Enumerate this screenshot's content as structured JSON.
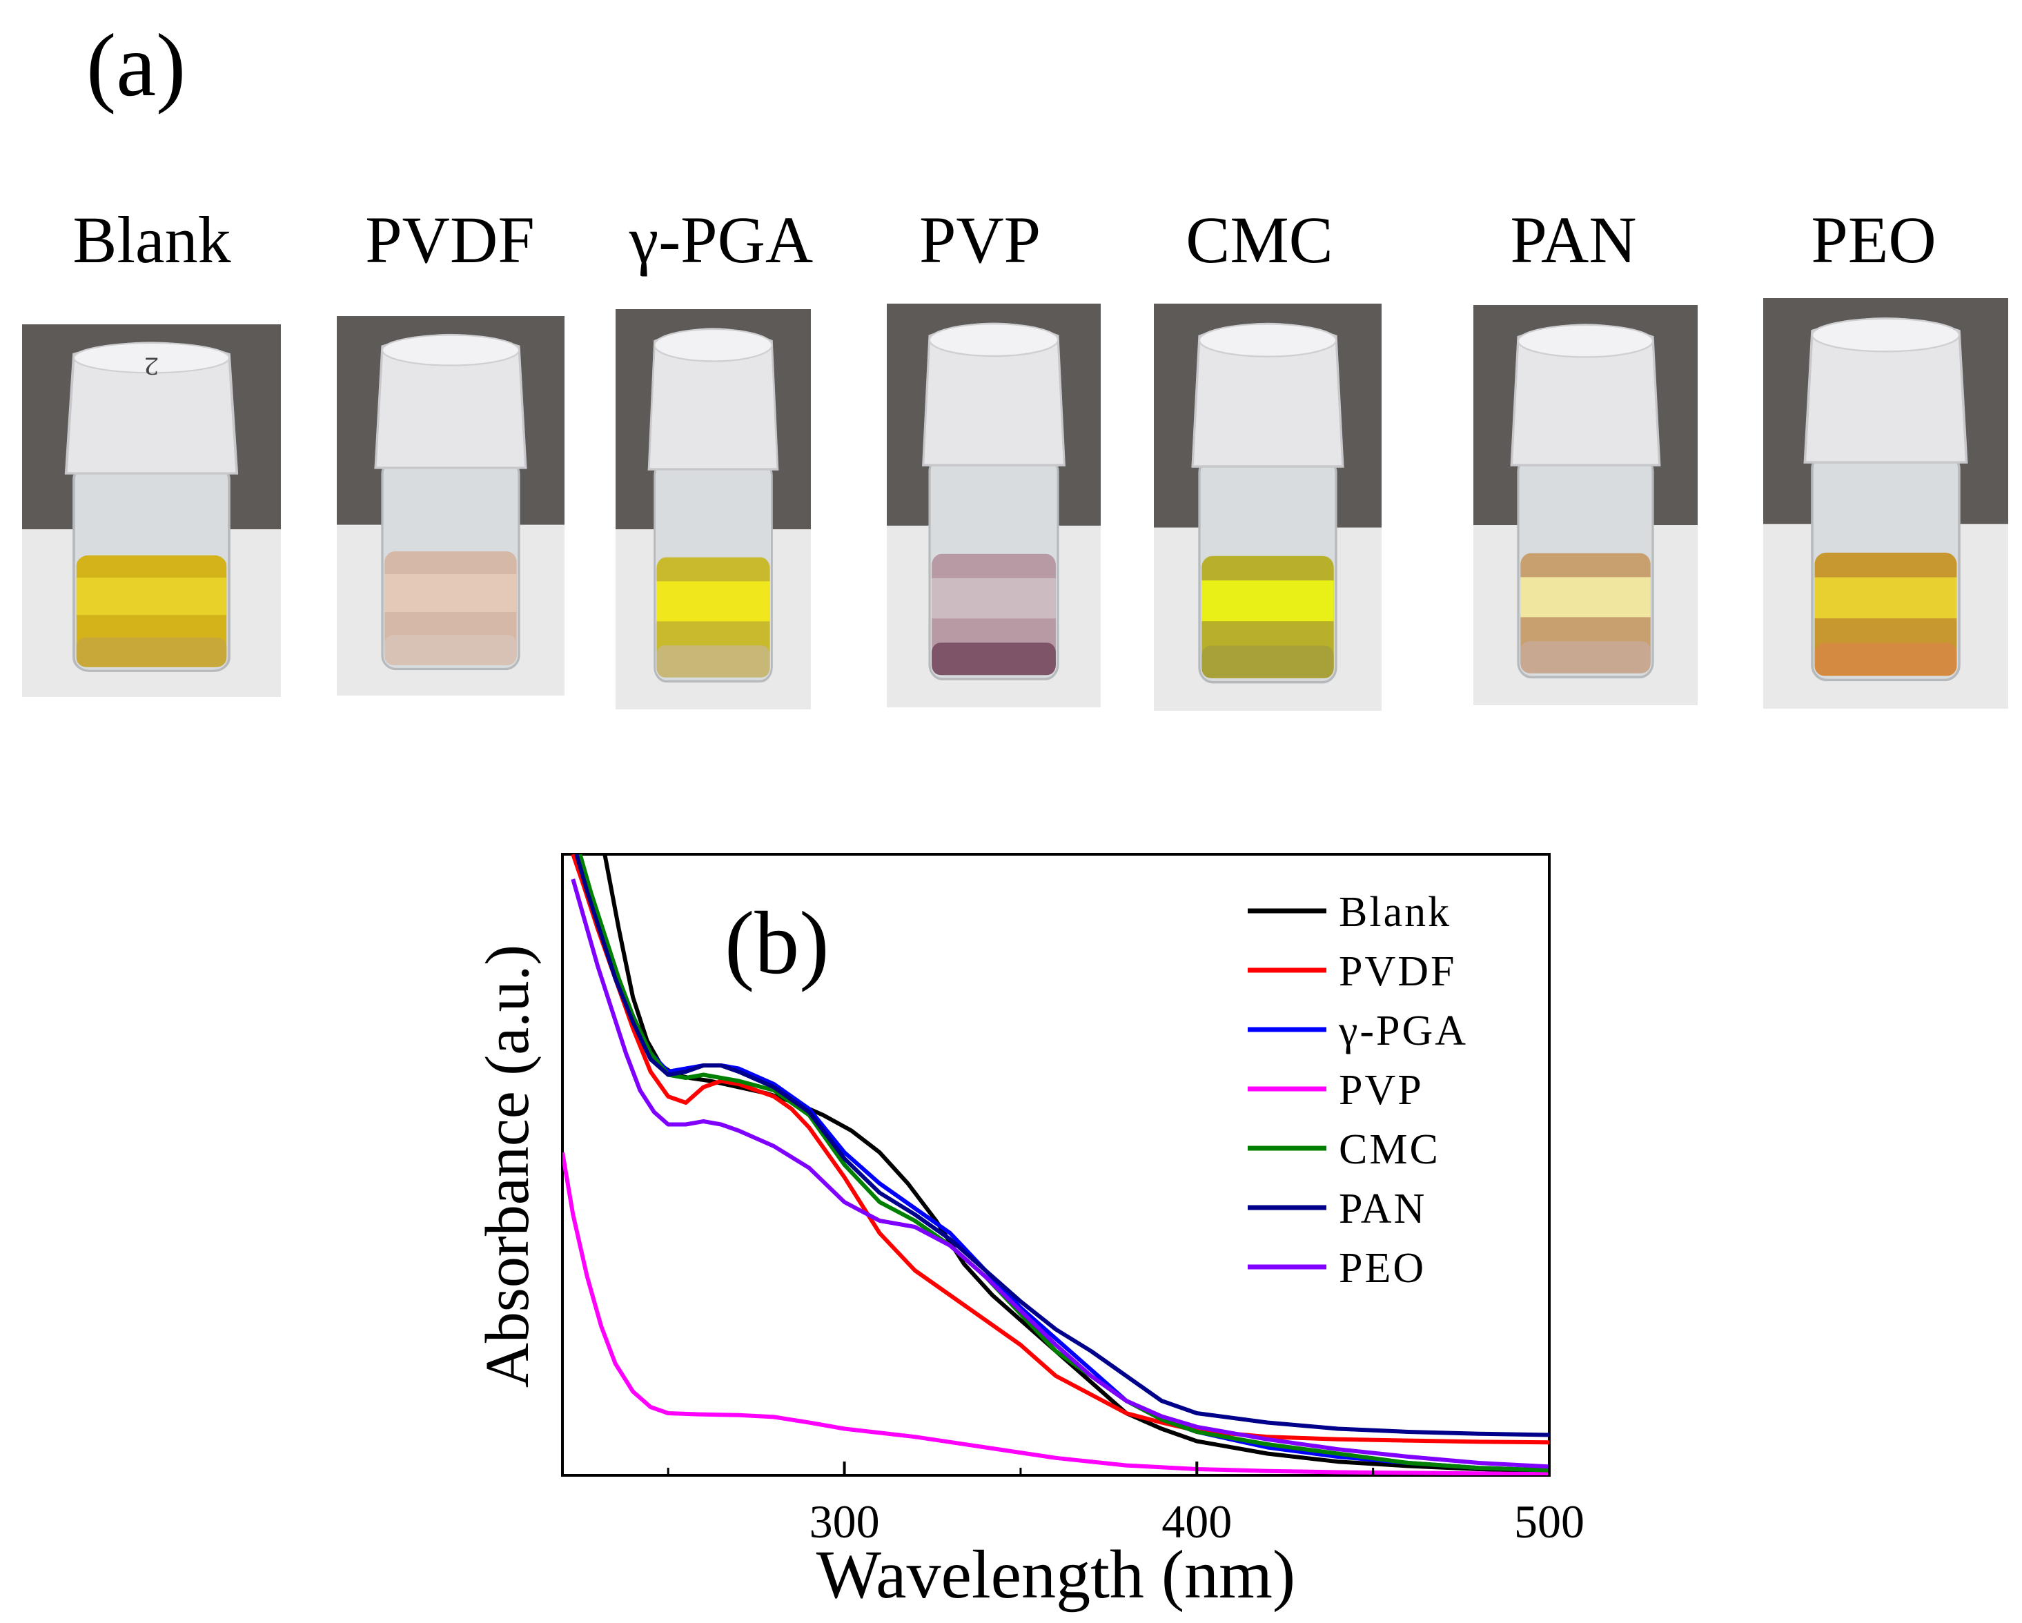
{
  "panel_a": {
    "label": "(a)",
    "vials": [
      {
        "name": "Blank",
        "cap_mark": "2",
        "liquid": "#d4b21a",
        "band": "#e8d22a",
        "sediment": "#c8a838"
      },
      {
        "name": "PVDF",
        "cap_mark": "",
        "liquid": "#d6b8a6",
        "band": "#e4c9b8",
        "sediment": "#d8c2b6"
      },
      {
        "name": "γ-PGA",
        "cap_mark": "",
        "liquid": "#c9b92c",
        "band": "#f0e81c",
        "sediment": "#c8b878"
      },
      {
        "name": "PVP",
        "cap_mark": "",
        "liquid": "#b89aa4",
        "band": "#cdbbc2",
        "sediment": "#7e5468"
      },
      {
        "name": "CMC",
        "cap_mark": "",
        "liquid": "#b8b02a",
        "band": "#e8f018",
        "sediment": "#a8a038"
      },
      {
        "name": "PAN",
        "cap_mark": "",
        "liquid": "#c8a070",
        "band": "#f0e6a0",
        "sediment": "#c8a890"
      },
      {
        "name": "PEO",
        "cap_mark": "",
        "liquid": "#c89830",
        "band": "#e8d030",
        "sediment": "#d48a40"
      }
    ]
  },
  "chart_data": {
    "type": "line",
    "panel_label": "(b)",
    "xlabel": "Wavelength (nm)",
    "ylabel": "Absorbance (a.u.)",
    "xlim": [
      220,
      500
    ],
    "ylim": [
      0,
      1.0
    ],
    "xticks": [
      300,
      400,
      500
    ],
    "yticks_shown": false,
    "legend_position": "top-right",
    "series": [
      {
        "name": "Blank",
        "color": "#000000",
        "x": [
          232,
          236,
          240,
          244,
          248,
          252,
          256,
          262,
          270,
          278,
          286,
          294,
          302,
          310,
          318,
          326,
          334,
          342,
          350,
          360,
          370,
          380,
          390,
          400,
          420,
          440,
          460,
          480,
          500
        ],
        "y": [
          1.0,
          0.88,
          0.77,
          0.7,
          0.66,
          0.645,
          0.64,
          0.635,
          0.625,
          0.615,
          0.6,
          0.58,
          0.555,
          0.52,
          0.47,
          0.41,
          0.34,
          0.29,
          0.25,
          0.2,
          0.15,
          0.1,
          0.075,
          0.055,
          0.035,
          0.022,
          0.015,
          0.01,
          0.007
        ]
      },
      {
        "name": "PVDF",
        "color": "#ff0000",
        "x": [
          223,
          226,
          230,
          235,
          240,
          245,
          250,
          255,
          260,
          265,
          270,
          275,
          280,
          285,
          290,
          300,
          310,
          320,
          330,
          340,
          350,
          360,
          370,
          380,
          390,
          400,
          420,
          440,
          460,
          480,
          500
        ],
        "y": [
          1.0,
          0.95,
          0.88,
          0.8,
          0.72,
          0.65,
          0.61,
          0.6,
          0.625,
          0.635,
          0.63,
          0.62,
          0.61,
          0.59,
          0.56,
          0.48,
          0.39,
          0.33,
          0.29,
          0.25,
          0.21,
          0.16,
          0.13,
          0.1,
          0.085,
          0.072,
          0.062,
          0.058,
          0.056,
          0.054,
          0.053
        ]
      },
      {
        "name": "γ-PGA",
        "color": "#0000ff",
        "x": [
          224,
          227,
          231,
          235,
          240,
          245,
          250,
          255,
          260,
          265,
          270,
          280,
          290,
          300,
          310,
          320,
          330,
          340,
          350,
          360,
          370,
          380,
          390,
          400,
          420,
          440,
          460,
          480,
          500
        ],
        "y": [
          1.0,
          0.95,
          0.88,
          0.81,
          0.74,
          0.68,
          0.65,
          0.655,
          0.66,
          0.66,
          0.655,
          0.63,
          0.59,
          0.52,
          0.47,
          0.43,
          0.39,
          0.33,
          0.27,
          0.22,
          0.17,
          0.12,
          0.09,
          0.07,
          0.045,
          0.03,
          0.02,
          0.012,
          0.008
        ]
      },
      {
        "name": "PVP",
        "color": "#ff00ff",
        "x": [
          220,
          223,
          227,
          231,
          235,
          240,
          245,
          250,
          260,
          270,
          280,
          290,
          300,
          320,
          340,
          360,
          380,
          400,
          420,
          440,
          460,
          480,
          500
        ],
        "y": [
          0.52,
          0.42,
          0.32,
          0.24,
          0.18,
          0.135,
          0.11,
          0.1,
          0.098,
          0.097,
          0.094,
          0.085,
          0.075,
          0.062,
          0.045,
          0.028,
          0.016,
          0.01,
          0.007,
          0.005,
          0.004,
          0.003,
          0.002
        ]
      },
      {
        "name": "CMC",
        "color": "#008000",
        "x": [
          225,
          228,
          232,
          236,
          240,
          245,
          250,
          255,
          260,
          265,
          270,
          280,
          290,
          300,
          310,
          320,
          330,
          340,
          350,
          360,
          370,
          380,
          390,
          400,
          420,
          440,
          460,
          480,
          500
        ],
        "y": [
          1.0,
          0.94,
          0.87,
          0.8,
          0.74,
          0.68,
          0.645,
          0.64,
          0.645,
          0.64,
          0.635,
          0.62,
          0.58,
          0.5,
          0.44,
          0.41,
          0.37,
          0.32,
          0.26,
          0.2,
          0.16,
          0.12,
          0.09,
          0.07,
          0.05,
          0.035,
          0.02,
          0.012,
          0.008
        ]
      },
      {
        "name": "PAN",
        "color": "#00008b",
        "x": [
          224,
          227,
          231,
          235,
          240,
          245,
          250,
          255,
          260,
          265,
          270,
          280,
          290,
          300,
          310,
          320,
          330,
          340,
          350,
          360,
          370,
          380,
          390,
          400,
          420,
          440,
          460,
          480,
          500
        ],
        "y": [
          1.0,
          0.94,
          0.87,
          0.8,
          0.73,
          0.67,
          0.645,
          0.65,
          0.66,
          0.66,
          0.65,
          0.625,
          0.585,
          0.51,
          0.455,
          0.42,
          0.38,
          0.33,
          0.28,
          0.235,
          0.2,
          0.16,
          0.12,
          0.1,
          0.085,
          0.075,
          0.07,
          0.067,
          0.065
        ]
      },
      {
        "name": "PEO",
        "color": "#8000ff",
        "x": [
          223,
          226,
          230,
          234,
          238,
          242,
          246,
          250,
          255,
          260,
          265,
          270,
          280,
          290,
          300,
          310,
          320,
          330,
          340,
          350,
          360,
          370,
          380,
          390,
          400,
          420,
          440,
          460,
          480,
          500
        ],
        "y": [
          0.96,
          0.9,
          0.82,
          0.75,
          0.68,
          0.62,
          0.585,
          0.565,
          0.565,
          0.57,
          0.565,
          0.555,
          0.53,
          0.495,
          0.44,
          0.41,
          0.4,
          0.37,
          0.32,
          0.265,
          0.21,
          0.16,
          0.12,
          0.095,
          0.078,
          0.058,
          0.042,
          0.03,
          0.02,
          0.014
        ]
      }
    ]
  }
}
